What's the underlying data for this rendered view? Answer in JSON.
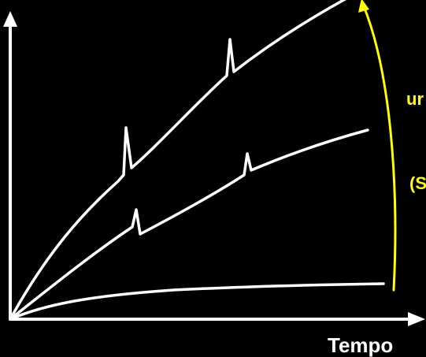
{
  "colors": {
    "background": "#000000",
    "foreground": "#ffffff",
    "accent": "#ffff00"
  },
  "axes": {
    "x_label": "Tempo"
  },
  "side_labels": {
    "upper_fragment": "ur",
    "lower_fragment": "(S"
  },
  "curves": [
    {
      "name": "curve-upper",
      "spikes": 2
    },
    {
      "name": "curve-middle",
      "spikes": 2
    },
    {
      "name": "curve-lower",
      "spikes": 0
    }
  ]
}
